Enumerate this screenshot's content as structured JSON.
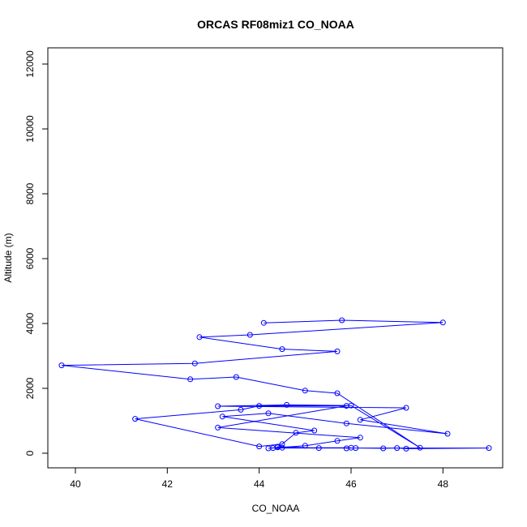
{
  "chart_data": {
    "type": "line",
    "title": "ORCAS RF08miz1 CO_NOAA",
    "xlabel": "CO_NOAA",
    "ylabel": "Altitude (m)",
    "xlim": [
      39.4,
      49.3
    ],
    "ylim": [
      -450,
      12500
    ],
    "xticks": [
      40,
      42,
      44,
      46,
      48
    ],
    "yticks": [
      0,
      2000,
      4000,
      6000,
      8000,
      10000,
      12000
    ],
    "grid": false,
    "legend": "none",
    "color": "#0000ff",
    "series": [
      {
        "x": [
          44.1,
          45.8,
          48.0,
          43.8,
          42.7,
          44.5,
          45.7,
          42.6,
          39.7,
          42.5,
          43.5,
          45.0,
          45.7,
          47.5,
          46.0,
          44.6,
          43.1,
          47.2,
          46.2,
          48.1,
          45.9,
          44.2,
          43.2,
          45.2,
          44.8,
          44.5,
          44.0,
          41.3,
          43.6,
          44.0,
          45.9,
          43.1,
          46.2,
          45.7,
          45.0,
          44.2,
          44.4,
          44.4,
          45.3,
          46.1,
          46.7,
          47.0,
          47.2,
          49.0,
          44.3,
          44.5,
          46.0,
          45.9
        ],
        "y": [
          4020,
          4100,
          4030,
          3650,
          3580,
          3210,
          3140,
          2770,
          2710,
          2280,
          2350,
          1930,
          1850,
          170,
          1470,
          1490,
          1450,
          1400,
          1030,
          600,
          920,
          1230,
          1130,
          700,
          630,
          280,
          210,
          1060,
          1340,
          1460,
          1460,
          790,
          480,
          380,
          230,
          150,
          180,
          200,
          160,
          160,
          150,
          160,
          140,
          160,
          160,
          170,
          170,
          150
        ]
      }
    ]
  }
}
